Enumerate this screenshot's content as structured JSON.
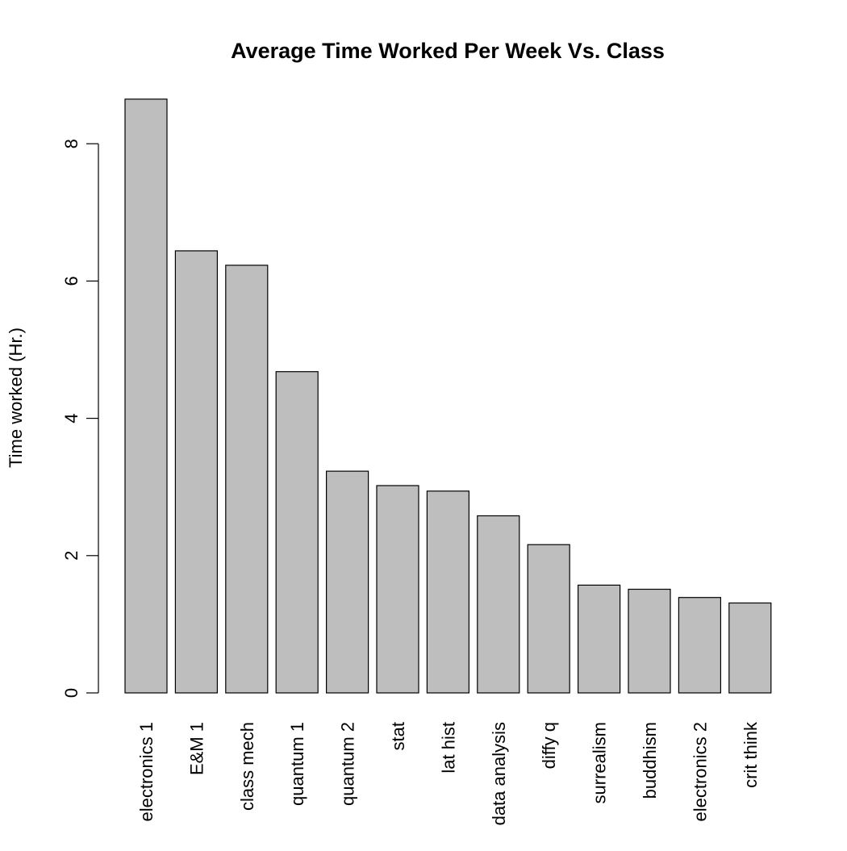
{
  "chart_data": {
    "type": "bar",
    "title": "Average Time Worked Per Week Vs. Class",
    "xlabel": "",
    "ylabel": "Time worked (Hr.)",
    "categories": [
      "electronics 1",
      "E&M 1",
      "class mech",
      "quantum 1",
      "quantum 2",
      "stat",
      "lat hist",
      "data analysis",
      "diffy q",
      "surrealism",
      "buddhism",
      "electronics 2",
      "crit think"
    ],
    "values": [
      8.65,
      6.44,
      6.23,
      4.68,
      3.23,
      3.02,
      2.94,
      2.58,
      2.16,
      1.57,
      1.51,
      1.39,
      1.31
    ],
    "yticks": [
      0,
      2,
      4,
      6,
      8
    ],
    "ylim": [
      0,
      8.65
    ],
    "grid": false,
    "legend": "none",
    "bar_color": "#bebebe",
    "bar_edge_color": "#000000"
  }
}
